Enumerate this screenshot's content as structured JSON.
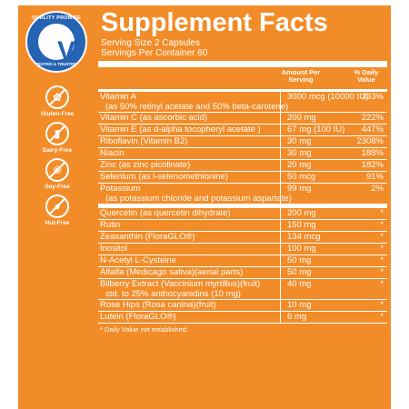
{
  "badge": {
    "top_text": "QUALITY PROMISE",
    "bottom_text": "TESTED & TRUSTED"
  },
  "free_from": [
    {
      "label": "Gluten-Free",
      "icon": "wheat-icon"
    },
    {
      "label": "Dairy-Free",
      "icon": "milk-icon"
    },
    {
      "label": "Soy-Free",
      "icon": "soy-icon"
    },
    {
      "label": "Nut-Free",
      "icon": "nut-icon"
    }
  ],
  "facts": {
    "title": "Supplement Facts",
    "serving_size": "Serving Size 2 Capsules",
    "servings_per_container": "Servings Per Container 60",
    "col_amount": "Amount Per Serving",
    "col_dv": "% Daily Value",
    "group1": [
      {
        "name": "Vitamin A",
        "sub": "(as 50% retinyl acetate and 50% beta-carotene)",
        "amount": "3000 mcg (10000 IU)",
        "dv": "333%"
      },
      {
        "name": "Vitamin C (as ascorbic acid)",
        "sub": "",
        "amount": "200 mg",
        "dv": "222%"
      },
      {
        "name": "Vitamin E (as d-alpha tocopheryl acetate )",
        "sub": "",
        "amount": "67 mg (100 IU)",
        "dv": "447%"
      },
      {
        "name": "Riboflavin (Vitamin B2)",
        "sub": "",
        "amount": "30 mg",
        "dv": "2308%"
      },
      {
        "name": "Niacin",
        "sub": "",
        "amount": "30 mg",
        "dv": "188%"
      },
      {
        "name": "Zinc (as zinc picolinate)",
        "sub": "",
        "amount": "20 mg",
        "dv": "182%"
      },
      {
        "name": "Selenium (as l-selenomethionine)",
        "sub": "",
        "amount": "50 mcg",
        "dv": "91%"
      },
      {
        "name": "Potassium",
        "sub": "(as potassium chloride and potassium aspartate)",
        "amount": "99 mg",
        "dv": "2%"
      }
    ],
    "group2": [
      {
        "name": "Quercetin (as quercetin dihydrate)",
        "sub": "",
        "amount": "200 mg",
        "dv": "*"
      },
      {
        "name": "Rutin",
        "sub": "",
        "amount": "150 mg",
        "dv": "*"
      },
      {
        "name": "Zeaxanthin (FloraGLO®)",
        "sub": "",
        "amount": "134 mcg",
        "dv": "*"
      },
      {
        "name": "Inositol",
        "sub": "",
        "amount": "100 mg",
        "dv": "*"
      },
      {
        "name": "N-Acetyl L-Cysteine",
        "sub": "",
        "amount": "50 mg",
        "dv": "*"
      },
      {
        "name": "Alfalfa (Medicago sativa)(aerial parts)",
        "sub": "",
        "amount": "50 mg",
        "dv": "*"
      },
      {
        "name": "Bilberry Extract (Vaccinium myrtillus)(fruit)",
        "sub": "std. to 25% anthocyanidins (10 mg)",
        "amount": "40 mg",
        "dv": "*"
      },
      {
        "name": "Rose Hips (Rosa canina)(fruit)",
        "sub": "",
        "amount": "10 mg",
        "dv": "*"
      },
      {
        "name": "Lutein (FloraGLO®)",
        "sub": "",
        "amount": "6 mg",
        "dv": "*"
      }
    ],
    "footnote": "* Daily Value not established."
  }
}
